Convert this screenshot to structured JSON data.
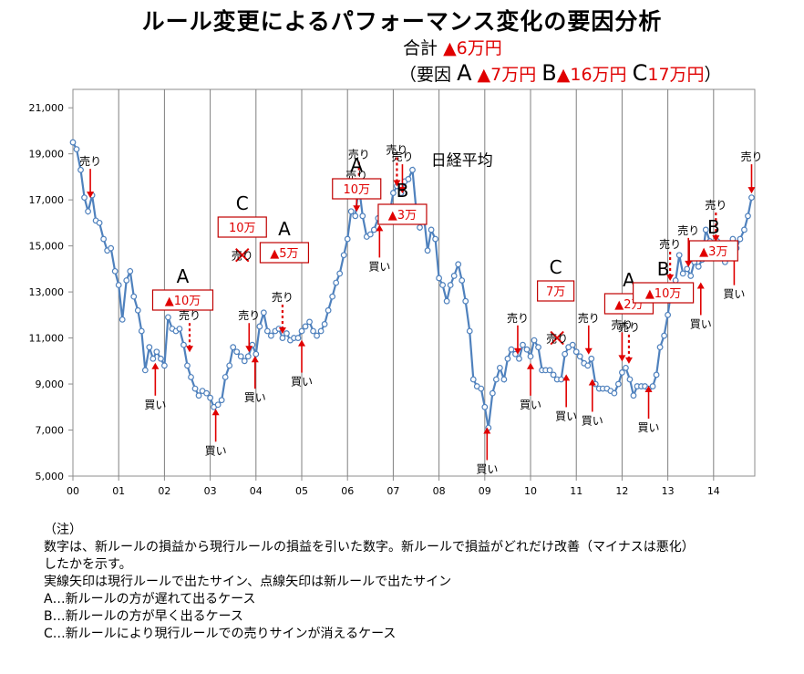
{
  "title": "ルール変更によるパフォーマンス変化の要因分析",
  "summary": {
    "total_label": "合計",
    "total_value": "▲6万円",
    "factors_open": "（要因",
    "a_label": "A",
    "a_value": "▲7万円",
    "b_label": "B",
    "b_value": "▲16万円",
    "c_label": "C",
    "c_value": "17万円",
    "factors_close": "）"
  },
  "notes": [
    "（注）",
    "数字は、新ルールの損益から現行ルールの損益を引いた数字。新ルールで損益がどれだけ改善（マイナスは悪化）",
    "したかを示す。",
    "実線矢印は現行ルールで出たサイン、点線矢印は新ルールで出たサイン",
    "A…新ルールの方が遅れて出るケース",
    "B…新ルールの方が早く出るケース",
    "C…新ルールにより現行ルールでの売りサインが消えるケース"
  ],
  "colors": {
    "line": "#4f81bd",
    "marker_fill": "#ffffff",
    "signal": "#e00000",
    "grid": "#808080"
  },
  "chart_data": {
    "type": "line",
    "series_label": "日経平均",
    "x_tick_labels": [
      "00",
      "01",
      "02",
      "03",
      "04",
      "05",
      "06",
      "07",
      "08",
      "09",
      "10",
      "11",
      "12",
      "13",
      "14"
    ],
    "y_tick_labels": [
      "5,000",
      "7,000",
      "9,000",
      "11,000",
      "13,000",
      "15,000",
      "17,000",
      "19,000",
      "21,000"
    ],
    "ylim": [
      5000,
      21800
    ],
    "xlim": [
      0,
      14.9
    ],
    "grid": "vertical",
    "points": [
      [
        0.0,
        19500
      ],
      [
        0.08,
        19200
      ],
      [
        0.17,
        18300
      ],
      [
        0.25,
        17100
      ],
      [
        0.33,
        16500
      ],
      [
        0.42,
        17200
      ],
      [
        0.5,
        16100
      ],
      [
        0.58,
        16000
      ],
      [
        0.67,
        15300
      ],
      [
        0.75,
        14800
      ],
      [
        0.83,
        14900
      ],
      [
        0.92,
        13900
      ],
      [
        1.0,
        13300
      ],
      [
        1.08,
        11800
      ],
      [
        1.17,
        13500
      ],
      [
        1.25,
        13900
      ],
      [
        1.33,
        12800
      ],
      [
        1.42,
        12200
      ],
      [
        1.5,
        11300
      ],
      [
        1.58,
        9600
      ],
      [
        1.67,
        10600
      ],
      [
        1.75,
        10100
      ],
      [
        1.83,
        10400
      ],
      [
        1.92,
        10100
      ],
      [
        2.0,
        9800
      ],
      [
        2.08,
        11900
      ],
      [
        2.17,
        11400
      ],
      [
        2.25,
        11300
      ],
      [
        2.33,
        11400
      ],
      [
        2.42,
        10700
      ],
      [
        2.5,
        9800
      ],
      [
        2.58,
        9300
      ],
      [
        2.67,
        8800
      ],
      [
        2.75,
        8500
      ],
      [
        2.83,
        8700
      ],
      [
        2.92,
        8600
      ],
      [
        3.0,
        8400
      ],
      [
        3.08,
        8000
      ],
      [
        3.17,
        8100
      ],
      [
        3.25,
        8300
      ],
      [
        3.33,
        9300
      ],
      [
        3.42,
        9800
      ],
      [
        3.5,
        10600
      ],
      [
        3.58,
        10400
      ],
      [
        3.67,
        10200
      ],
      [
        3.75,
        10000
      ],
      [
        3.83,
        10200
      ],
      [
        3.92,
        10700
      ],
      [
        4.0,
        10300
      ],
      [
        4.08,
        11500
      ],
      [
        4.17,
        12100
      ],
      [
        4.25,
        11300
      ],
      [
        4.33,
        11100
      ],
      [
        4.42,
        11300
      ],
      [
        4.5,
        11400
      ],
      [
        4.58,
        11000
      ],
      [
        4.67,
        11200
      ],
      [
        4.75,
        10900
      ],
      [
        4.83,
        11000
      ],
      [
        4.92,
        11000
      ],
      [
        5.0,
        11300
      ],
      [
        5.08,
        11500
      ],
      [
        5.17,
        11700
      ],
      [
        5.25,
        11300
      ],
      [
        5.33,
        11100
      ],
      [
        5.42,
        11300
      ],
      [
        5.5,
        11600
      ],
      [
        5.58,
        12200
      ],
      [
        5.67,
        12800
      ],
      [
        5.75,
        13400
      ],
      [
        5.83,
        13800
      ],
      [
        5.92,
        14600
      ],
      [
        6.0,
        15300
      ],
      [
        6.08,
        16500
      ],
      [
        6.17,
        16300
      ],
      [
        6.25,
        17600
      ],
      [
        6.33,
        16300
      ],
      [
        6.42,
        15400
      ],
      [
        6.5,
        15500
      ],
      [
        6.58,
        15700
      ],
      [
        6.67,
        16200
      ],
      [
        6.75,
        16300
      ],
      [
        6.83,
        16600
      ],
      [
        6.92,
        16400
      ],
      [
        7.0,
        17300
      ],
      [
        7.08,
        17600
      ],
      [
        7.17,
        17300
      ],
      [
        7.25,
        17800
      ],
      [
        7.33,
        17900
      ],
      [
        7.42,
        18300
      ],
      [
        7.5,
        16600
      ],
      [
        7.58,
        15800
      ],
      [
        7.67,
        16300
      ],
      [
        7.75,
        14800
      ],
      [
        7.83,
        15700
      ],
      [
        7.92,
        15300
      ],
      [
        8.0,
        13600
      ],
      [
        8.08,
        13300
      ],
      [
        8.17,
        12600
      ],
      [
        8.25,
        13300
      ],
      [
        8.33,
        13700
      ],
      [
        8.42,
        14200
      ],
      [
        8.5,
        13500
      ],
      [
        8.58,
        12600
      ],
      [
        8.67,
        11300
      ],
      [
        8.75,
        9200
      ],
      [
        8.83,
        8900
      ],
      [
        8.92,
        8800
      ],
      [
        9.0,
        8000
      ],
      [
        9.08,
        7100
      ],
      [
        9.17,
        8600
      ],
      [
        9.25,
        9200
      ],
      [
        9.33,
        9700
      ],
      [
        9.42,
        9200
      ],
      [
        9.5,
        10100
      ],
      [
        9.58,
        10500
      ],
      [
        9.67,
        10300
      ],
      [
        9.75,
        10100
      ],
      [
        9.83,
        10700
      ],
      [
        9.92,
        10500
      ],
      [
        10.0,
        10200
      ],
      [
        10.08,
        10900
      ],
      [
        10.17,
        10600
      ],
      [
        10.25,
        9600
      ],
      [
        10.33,
        9600
      ],
      [
        10.42,
        9600
      ],
      [
        10.5,
        9400
      ],
      [
        10.58,
        9200
      ],
      [
        10.67,
        9200
      ],
      [
        10.75,
        10300
      ],
      [
        10.83,
        10600
      ],
      [
        10.92,
        10700
      ],
      [
        11.0,
        10400
      ],
      [
        11.08,
        10200
      ],
      [
        11.17,
        9900
      ],
      [
        11.25,
        9800
      ],
      [
        11.33,
        10100
      ],
      [
        11.42,
        9000
      ],
      [
        11.5,
        8800
      ],
      [
        11.58,
        8800
      ],
      [
        11.67,
        8800
      ],
      [
        11.75,
        8700
      ],
      [
        11.83,
        8600
      ],
      [
        11.92,
        9000
      ],
      [
        12.0,
        9500
      ],
      [
        12.08,
        9700
      ],
      [
        12.17,
        9200
      ],
      [
        12.25,
        8500
      ],
      [
        12.33,
        8900
      ],
      [
        12.42,
        8900
      ],
      [
        12.5,
        8900
      ],
      [
        12.58,
        8800
      ],
      [
        12.67,
        8900
      ],
      [
        12.75,
        9400
      ],
      [
        12.83,
        10600
      ],
      [
        12.92,
        11100
      ],
      [
        13.0,
        12000
      ],
      [
        13.08,
        13100
      ],
      [
        13.17,
        13500
      ],
      [
        13.25,
        14600
      ],
      [
        13.33,
        13800
      ],
      [
        13.42,
        14000
      ],
      [
        13.5,
        13700
      ],
      [
        13.58,
        14300
      ],
      [
        13.67,
        14100
      ],
      [
        13.75,
        14400
      ],
      [
        13.83,
        15700
      ],
      [
        13.92,
        15200
      ],
      [
        14.0,
        14800
      ],
      [
        14.08,
        15200
      ],
      [
        14.17,
        14800
      ],
      [
        14.25,
        14300
      ],
      [
        14.33,
        14800
      ],
      [
        14.42,
        15300
      ],
      [
        14.5,
        14900
      ],
      [
        14.58,
        15300
      ],
      [
        14.67,
        15700
      ],
      [
        14.75,
        16300
      ],
      [
        14.83,
        17100
      ]
    ],
    "signals": [
      {
        "kind": "sell",
        "label": "売り",
        "x": 0.38,
        "y": 17000,
        "style": "solid"
      },
      {
        "kind": "buy",
        "label": "買い",
        "x": 1.8,
        "y": 10000,
        "style": "solid"
      },
      {
        "kind": "sell",
        "label": "売り",
        "x": 2.55,
        "y": 10300,
        "style": "dotted"
      },
      {
        "kind": "buy",
        "label": "買い",
        "x": 3.12,
        "y": 8000,
        "style": "solid"
      },
      {
        "kind": "sell",
        "label": "売り",
        "x": 3.85,
        "y": 10300,
        "style": "solid"
      },
      {
        "kind": "sell",
        "label": "売り",
        "x": 3.7,
        "y": 14600,
        "style": "cross"
      },
      {
        "kind": "buy",
        "label": "買い",
        "x": 3.98,
        "y": 10300,
        "style": "solid"
      },
      {
        "kind": "sell",
        "label": "売り",
        "x": 4.58,
        "y": 11100,
        "style": "dotted"
      },
      {
        "kind": "buy",
        "label": "買い",
        "x": 5.0,
        "y": 11000,
        "style": "solid"
      },
      {
        "kind": "sell",
        "label": "売り",
        "x": 6.25,
        "y": 17300,
        "style": "dotted"
      },
      {
        "kind": "sell",
        "label": "売り",
        "x": 6.2,
        "y": 16400,
        "style": "solid"
      },
      {
        "kind": "buy",
        "label": "買い",
        "x": 6.7,
        "y": 16000,
        "style": "solid"
      },
      {
        "kind": "sell",
        "label": "売り",
        "x": 7.08,
        "y": 17500,
        "style": "dotted"
      },
      {
        "kind": "sell",
        "label": "売り",
        "x": 7.2,
        "y": 17200,
        "style": "solid"
      },
      {
        "kind": "buy",
        "label": "買い",
        "x": 9.05,
        "y": 7200,
        "style": "solid"
      },
      {
        "kind": "sell",
        "label": "売り",
        "x": 9.72,
        "y": 10200,
        "style": "solid"
      },
      {
        "kind": "buy",
        "label": "買い",
        "x": 10.0,
        "y": 10000,
        "style": "solid"
      },
      {
        "kind": "sell",
        "label": "売り",
        "x": 10.58,
        "y": 11000,
        "style": "cross"
      },
      {
        "kind": "buy",
        "label": "買い",
        "x": 10.78,
        "y": 9500,
        "style": "solid"
      },
      {
        "kind": "sell",
        "label": "売り",
        "x": 11.27,
        "y": 10200,
        "style": "solid"
      },
      {
        "kind": "buy",
        "label": "買い",
        "x": 11.35,
        "y": 9300,
        "style": "solid"
      },
      {
        "kind": "sell",
        "label": "売り",
        "x": 12.15,
        "y": 9800,
        "style": "dotted"
      },
      {
        "kind": "sell",
        "label": "売り",
        "x": 12.0,
        "y": 9900,
        "style": "solid"
      },
      {
        "kind": "buy",
        "label": "買い",
        "x": 12.58,
        "y": 9000,
        "style": "solid"
      },
      {
        "kind": "sell",
        "label": "売り",
        "x": 13.05,
        "y": 13400,
        "style": "dotted"
      },
      {
        "kind": "sell",
        "label": "売り",
        "x": 13.45,
        "y": 14000,
        "style": "solid"
      },
      {
        "kind": "buy",
        "label": "買い",
        "x": 13.72,
        "y": 13500,
        "style": "solid"
      },
      {
        "kind": "sell",
        "label": "売り",
        "x": 14.05,
        "y": 15100,
        "style": "dotted"
      },
      {
        "kind": "buy",
        "label": "買い",
        "x": 14.45,
        "y": 14800,
        "style": "solid"
      },
      {
        "kind": "sell",
        "label": "売り",
        "x": 14.83,
        "y": 17200,
        "style": "solid"
      }
    ],
    "annotations": [
      {
        "case": "A",
        "amount": "▲10万",
        "x": 2.4
      },
      {
        "case": "C",
        "amount": "10万",
        "x": 3.7
      },
      {
        "case": "A",
        "amount": "▲5万",
        "x": 4.62
      },
      {
        "case": "A",
        "amount": "10万",
        "x": 6.2
      },
      {
        "case": "B",
        "amount": "▲3万",
        "x": 7.2
      },
      {
        "case": "C",
        "amount": "7万",
        "x": 10.55
      },
      {
        "case": "A",
        "amount": "▲2万",
        "x": 12.15
      },
      {
        "case": "B",
        "amount": "▲10万",
        "x": 12.9
      },
      {
        "case": "B",
        "amount": "▲3万",
        "x": 14.0
      }
    ]
  }
}
